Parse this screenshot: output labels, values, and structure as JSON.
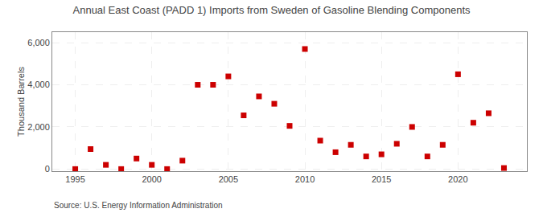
{
  "chart_data": {
    "type": "scatter",
    "title": "Annual East Coast (PADD 1) Imports from Sweden of Gasoline Blending Components",
    "y_label": "Thousand Barrels",
    "annotations": [
      "Source: U.S. Energy Information Administration"
    ],
    "x": [
      1995,
      1996,
      1997,
      1998,
      1999,
      2000,
      2001,
      2002,
      2003,
      2004,
      2005,
      2006,
      2007,
      2008,
      2009,
      2010,
      2011,
      2012,
      2013,
      2014,
      2015,
      2016,
      2017,
      2018,
      2019,
      2020,
      2021,
      2022,
      2023
    ],
    "values": [
      0,
      950,
      200,
      0,
      500,
      200,
      0,
      400,
      4000,
      4000,
      4400,
      2550,
      3450,
      3100,
      2050,
      5700,
      1350,
      800,
      1150,
      600,
      700,
      1200,
      2000,
      600,
      1150,
      4500,
      2200,
      2650,
      50
    ],
    "color": "#cc0000",
    "marker": "square",
    "xlim": [
      1993.5,
      2024.5
    ],
    "xticks": [
      1995,
      2000,
      2005,
      2010,
      2015,
      2020
    ],
    "ylim": [
      -100,
      6500
    ],
    "yticks": [
      0,
      {
        "value": 2000,
        "label": "2,000"
      },
      {
        "value": 4000,
        "label": "4,000"
      },
      {
        "value": 6000,
        "label": "6,000"
      }
    ],
    "grid": true
  }
}
